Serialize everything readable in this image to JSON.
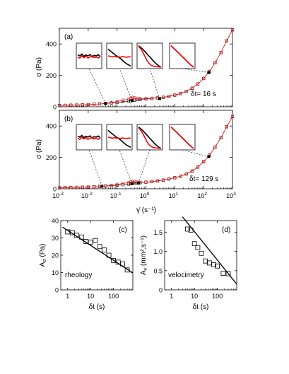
{
  "chart_data": [
    {
      "id": "a",
      "type": "line",
      "panel_label": "(a)",
      "annotation": "δt= 16 s",
      "ylabel": "σ (Pa)",
      "xscale": "log",
      "xlim": [
        0.001,
        1000
      ],
      "ylim": [
        0,
        500
      ],
      "yticks": [
        0,
        200,
        400
      ],
      "xticks": [
        "10",
        "10",
        "10",
        "10",
        "10",
        "10",
        "10"
      ],
      "xtick_exponents": [
        "-3",
        "-2",
        "-1",
        "0",
        "1",
        "2",
        "3"
      ],
      "grid": false,
      "series": [
        {
          "color": "#000000",
          "marker": "square-open",
          "x": [
            0.001,
            0.0016,
            0.0025,
            0.004,
            0.0063,
            0.01,
            0.016,
            0.025,
            0.04,
            0.063,
            0.1,
            0.16,
            0.25,
            0.3,
            0.4,
            0.5,
            0.63,
            1.0,
            1.6,
            2.5,
            4,
            6.3,
            10,
            16,
            25,
            40,
            63,
            100,
            160,
            250,
            400,
            630,
            1000
          ],
          "y": [
            8,
            9,
            10,
            11,
            12,
            14,
            16,
            18,
            21,
            24,
            28,
            32,
            36,
            38,
            42,
            45,
            47,
            50,
            53,
            56,
            60,
            66,
            74,
            84,
            98,
            118,
            145,
            180,
            225,
            280,
            345,
            420,
            490
          ]
        },
        {
          "color": "#ff0000",
          "marker": "circle-open",
          "x": [
            0.001,
            0.0016,
            0.0025,
            0.004,
            0.0063,
            0.01,
            0.016,
            0.025,
            0.04,
            0.063,
            0.1,
            0.16,
            0.25,
            0.3,
            0.35,
            0.4,
            0.5,
            0.63,
            1.0,
            1.6,
            2.5,
            4,
            6.3,
            10,
            16,
            25,
            40,
            63,
            100,
            160,
            250,
            400,
            630,
            1000
          ],
          "y": [
            8,
            9,
            10,
            11,
            12,
            14,
            16,
            18,
            21,
            26,
            34,
            42,
            50,
            56,
            60,
            58,
            54,
            52,
            52,
            54,
            57,
            61,
            67,
            75,
            85,
            99,
            119,
            146,
            181,
            226,
            281,
            346,
            421,
            491
          ]
        }
      ],
      "inset_markers": [
        {
          "x": 0.04,
          "y": 20
        },
        {
          "x": 0.33,
          "y": 40
        },
        {
          "x": 3.0,
          "y": 52
        },
        {
          "x": 150,
          "y": 218
        }
      ]
    },
    {
      "id": "b",
      "type": "line",
      "panel_label": "(b)",
      "annotation": "δt= 129 s",
      "ylabel": "σ (Pa)",
      "xlabel": "γ̇ (s⁻¹)",
      "xscale": "log",
      "xlim": [
        0.001,
        1000
      ],
      "ylim": [
        0,
        500
      ],
      "yticks": [
        0,
        200,
        400
      ],
      "xticks": [
        "10",
        "10",
        "10",
        "10",
        "10",
        "10",
        "10"
      ],
      "xtick_exponents": [
        "-3",
        "-2",
        "-1",
        "0",
        "1",
        "2",
        "3"
      ],
      "grid": false,
      "series": [
        {
          "color": "#000000",
          "marker": "square-open",
          "x": [
            0.001,
            0.0016,
            0.0025,
            0.004,
            0.0063,
            0.01,
            0.016,
            0.025,
            0.04,
            0.063,
            0.1,
            0.16,
            0.25,
            0.3,
            0.4,
            0.5,
            0.63,
            1.0,
            1.6,
            2.5,
            4,
            6.3,
            10,
            16,
            25,
            40,
            63,
            100,
            160,
            250,
            400,
            630,
            1000
          ],
          "y": [
            6,
            7,
            8,
            9,
            10,
            11,
            13,
            15,
            17,
            20,
            23,
            26,
            30,
            32,
            35,
            37,
            39,
            42,
            46,
            50,
            55,
            62,
            70,
            80,
            94,
            113,
            138,
            172,
            214,
            265,
            325,
            395,
            460
          ]
        },
        {
          "color": "#ff0000",
          "marker": "circle-open",
          "x": [
            0.001,
            0.0016,
            0.0025,
            0.004,
            0.0063,
            0.01,
            0.016,
            0.025,
            0.04,
            0.063,
            0.1,
            0.16,
            0.25,
            0.3,
            0.35,
            0.4,
            0.5,
            0.63,
            1.0,
            1.6,
            2.5,
            4,
            6.3,
            10,
            16,
            25,
            40,
            63,
            100,
            160,
            250,
            400,
            630,
            1000
          ],
          "y": [
            6,
            7,
            8,
            9,
            10,
            11,
            13,
            15,
            18,
            22,
            28,
            34,
            40,
            44,
            47,
            46,
            43,
            41,
            42,
            46,
            51,
            56,
            63,
            71,
            81,
            95,
            114,
            139,
            173,
            215,
            266,
            326,
            396,
            461
          ]
        }
      ],
      "inset_markers": [
        {
          "x": 0.03,
          "y": 16
        },
        {
          "x": 0.33,
          "y": 32
        },
        {
          "x": 0.55,
          "y": 36
        },
        {
          "x": 150,
          "y": 205
        }
      ]
    },
    {
      "id": "c",
      "type": "scatter",
      "panel_label": "(c)",
      "annotation": "rheology",
      "ylabel_main": "A",
      "ylabel_sub": "σ",
      "ylabel_unit": " (Pa)",
      "xlabel": "δt (s)",
      "xscale": "log",
      "xlim": [
        0.5,
        700
      ],
      "ylim": [
        0,
        40
      ],
      "yticks": [
        0,
        10,
        20,
        30,
        40
      ],
      "xticks": [
        1,
        10,
        100
      ],
      "xtick_labels": [
        "1",
        "10",
        "100"
      ],
      "points": {
        "x": [
          1.0,
          1.6,
          2.5,
          4.0,
          6.3,
          10,
          16,
          25,
          40,
          63,
          100,
          160,
          250,
          400
        ],
        "y": [
          33.5,
          33.0,
          31.5,
          30.5,
          28.0,
          27.5,
          28.5,
          25.0,
          23.0,
          20.0,
          17.0,
          16.0,
          15.0,
          11.5
        ]
      },
      "fit": {
        "x": [
          0.6,
          700
        ],
        "y": [
          36.2,
          9.8
        ]
      }
    },
    {
      "id": "d",
      "type": "scatter",
      "panel_label": "(d)",
      "annotation": "velocimetry",
      "ylabel_main": "A",
      "ylabel_sub": "v",
      "ylabel_unit": " (mm².s⁻¹)",
      "xlabel": "δt (s)",
      "xscale": "log",
      "xlim": [
        0.5,
        700
      ],
      "ylim": [
        0,
        1.8
      ],
      "yticks": [
        0,
        0.5,
        1.0,
        1.5
      ],
      "ytick_labels": [
        "0",
        "0.5",
        "1.0",
        "1.5"
      ],
      "xticks": [
        1,
        10,
        100
      ],
      "xtick_labels": [
        "1",
        "10",
        "100"
      ],
      "points": {
        "x": [
          5,
          7,
          10,
          14,
          20,
          30,
          45,
          70,
          100,
          180,
          300
        ],
        "y": [
          1.58,
          1.55,
          1.2,
          1.1,
          0.95,
          0.75,
          0.7,
          0.65,
          0.62,
          0.43,
          0.42
        ]
      },
      "fit": {
        "x": [
          3,
          700
        ],
        "y": [
          1.9,
          0.15
        ]
      }
    }
  ]
}
